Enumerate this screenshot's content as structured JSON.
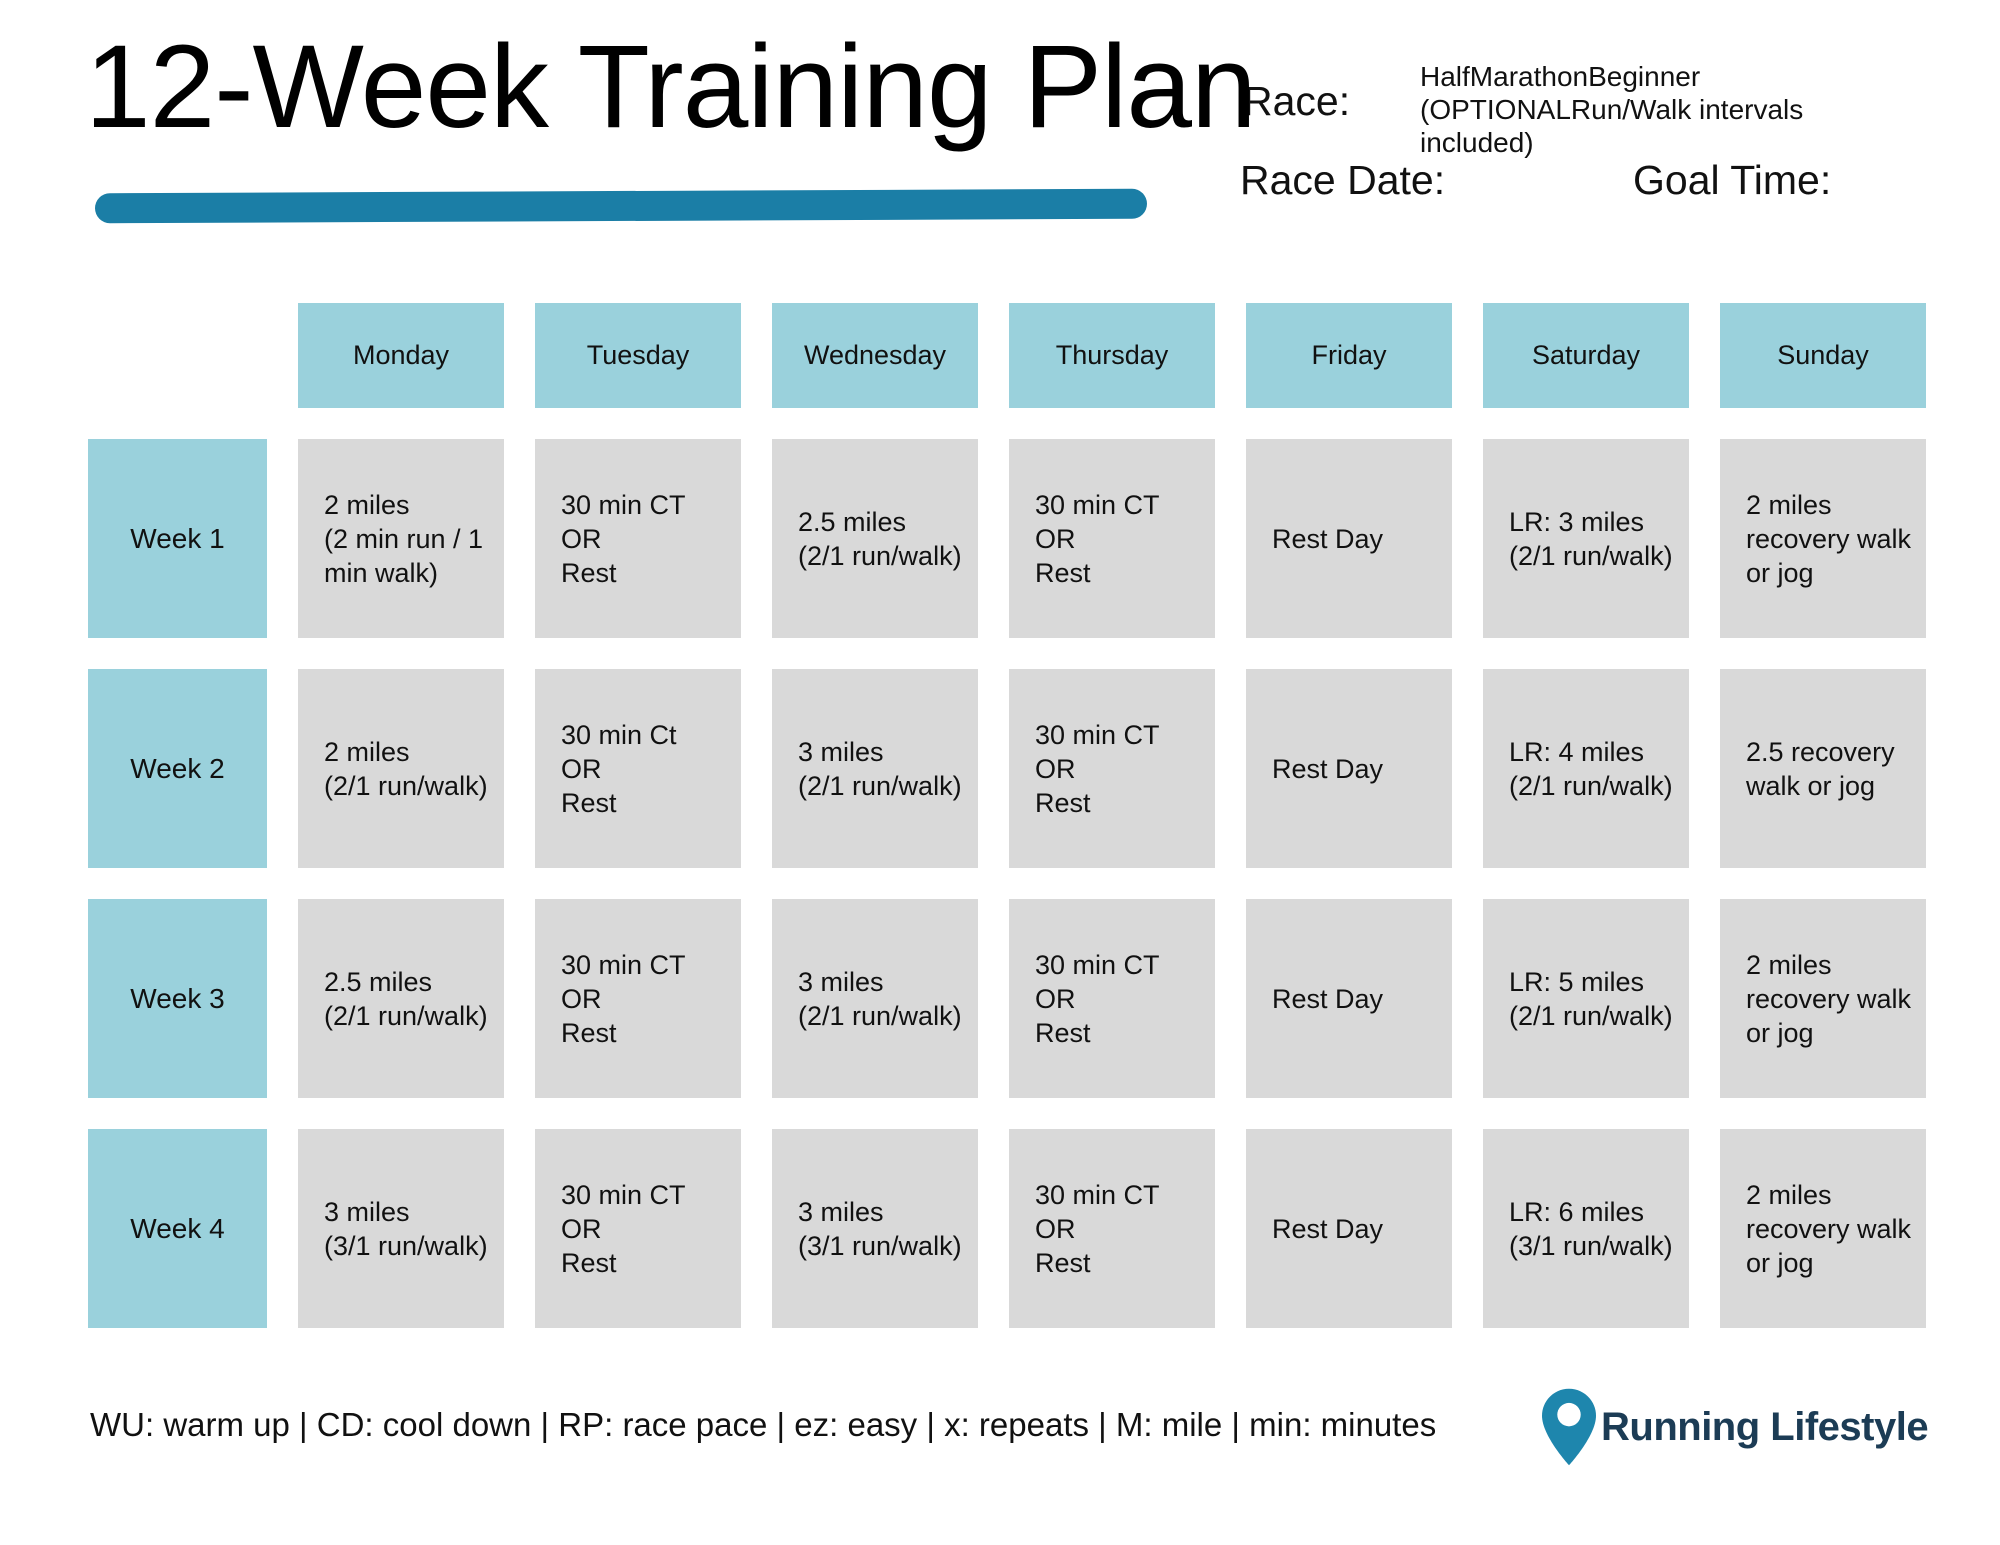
{
  "header": {
    "title": "12-Week Training Plan",
    "race_label": "Race:",
    "race_value": "HalfMarathonBeginner (OPTIONALRun/Walk intervals included)",
    "race_date_label": "Race Date:",
    "goal_time_label": "Goal Time:"
  },
  "table": {
    "day_headers": [
      "Monday",
      "Tuesday",
      "Wednesday",
      "Thursday",
      "Friday",
      "Saturday",
      "Sunday"
    ],
    "weeks": [
      {
        "label": "Week 1",
        "days": [
          "2 miles\n(2 min run / 1 min walk)",
          "30 min CT\nOR\nRest",
          "2.5 miles\n(2/1 run/walk)",
          "30 min CT\nOR\nRest",
          "Rest Day",
          "LR: 3 miles\n(2/1 run/walk)",
          "2 miles recovery walk or jog"
        ]
      },
      {
        "label": "Week 2",
        "days": [
          "2 miles\n(2/1 run/walk)",
          "30 min Ct\nOR\nRest",
          "3 miles\n(2/1 run/walk)",
          "30 min CT\nOR\nRest",
          "Rest Day",
          "LR: 4 miles\n(2/1 run/walk)",
          "2.5 recovery walk or jog"
        ]
      },
      {
        "label": "Week 3",
        "days": [
          "2.5 miles\n(2/1 run/walk)",
          "30 min CT\nOR\nRest",
          "3 miles\n(2/1 run/walk)",
          "30 min CT\nOR\nRest",
          "Rest Day",
          "LR: 5 miles\n(2/1 run/walk)",
          "2 miles recovery walk or jog"
        ]
      },
      {
        "label": "Week 4",
        "days": [
          "3 miles\n(3/1 run/walk)",
          "30 min CT\nOR\nRest",
          "3 miles\n(3/1 run/walk)",
          "30 min CT\nOR\nRest",
          "Rest Day",
          "LR: 6 miles\n(3/1 run/walk)",
          "2 miles recovery walk or jog"
        ]
      }
    ]
  },
  "footer": {
    "legend": "WU: warm up | CD: cool down | RP: race pace | ez: easy | x: repeats | M: mile | min: minutes",
    "brand": "Running Lifestyle",
    "pin_icon": "location-pin"
  },
  "colors": {
    "teal_cell": "#9ad1dc",
    "gray_cell": "#d9d9d9",
    "underline": "#1b7ea6",
    "brand_navy": "#1c3c55",
    "pin_blue": "#1e86ad",
    "text": "#111111"
  }
}
